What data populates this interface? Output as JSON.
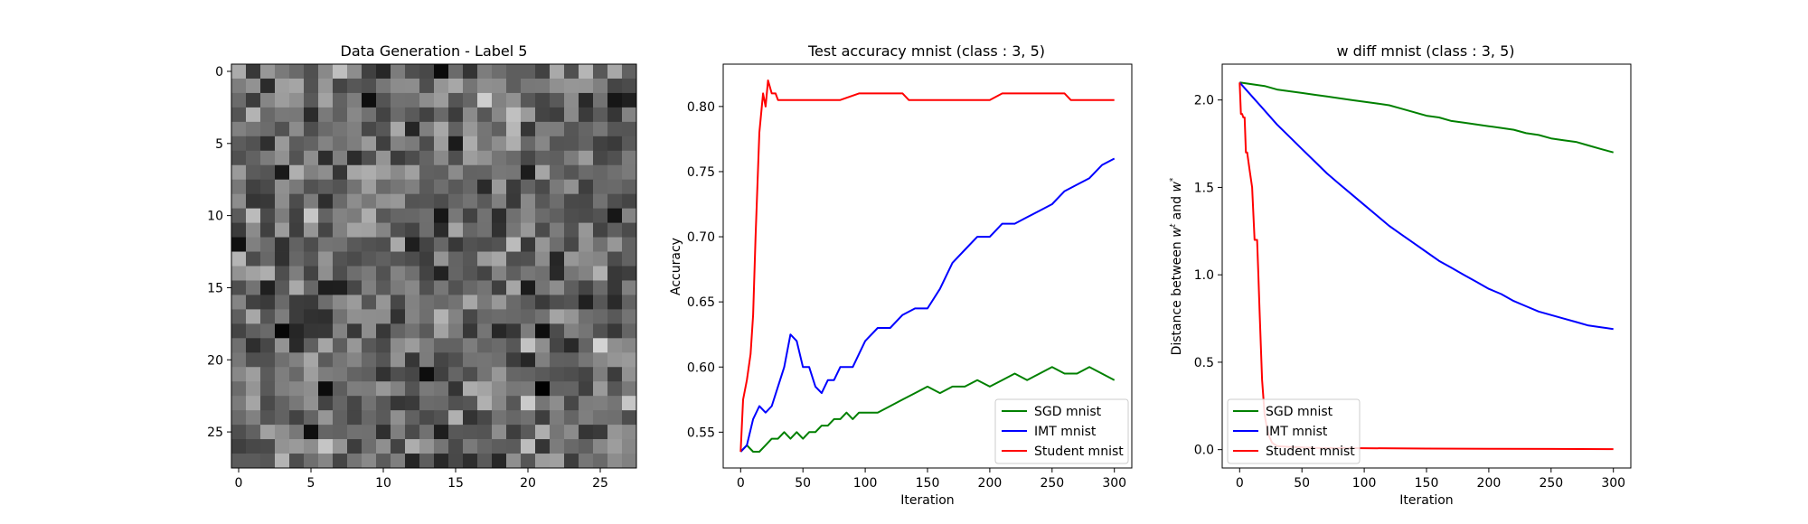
{
  "chart_data": [
    {
      "type": "heatmap",
      "title": "Data Generation - Label 5",
      "xlabel": "",
      "ylabel": "",
      "colormap": "gray",
      "grid": "28x28",
      "xticks": [
        "0",
        "5",
        "10",
        "15",
        "20",
        "25"
      ],
      "yticks": [
        "0",
        "5",
        "10",
        "15",
        "20",
        "25"
      ],
      "xlim": [
        -0.5,
        27.5
      ],
      "ylim": [
        27.5,
        -0.5
      ]
    },
    {
      "type": "line",
      "title": "Test accuracy mnist (class : 3, 5)",
      "xlabel": "Iteration",
      "ylabel": "Accuracy",
      "xlim": [
        -14,
        314
      ],
      "ylim": [
        0.5225,
        0.8325
      ],
      "xticks": [
        "0",
        "50",
        "100",
        "150",
        "200",
        "250",
        "300"
      ],
      "yticks": [
        "0.55",
        "0.60",
        "0.65",
        "0.70",
        "0.75",
        "0.80"
      ],
      "legend": "lower-right",
      "grid": false,
      "series": [
        {
          "name": "SGD mnist",
          "color": "#008000",
          "x": [
            0,
            5,
            10,
            15,
            20,
            25,
            30,
            35,
            40,
            45,
            50,
            55,
            60,
            65,
            70,
            75,
            80,
            85,
            90,
            95,
            100,
            110,
            120,
            130,
            140,
            150,
            160,
            170,
            180,
            190,
            200,
            210,
            220,
            230,
            240,
            250,
            260,
            270,
            280,
            290,
            300
          ],
          "y": [
            0.535,
            0.54,
            0.535,
            0.535,
            0.54,
            0.545,
            0.545,
            0.55,
            0.545,
            0.55,
            0.545,
            0.55,
            0.55,
            0.555,
            0.555,
            0.56,
            0.56,
            0.565,
            0.56,
            0.565,
            0.565,
            0.565,
            0.57,
            0.575,
            0.58,
            0.585,
            0.58,
            0.585,
            0.585,
            0.59,
            0.585,
            0.59,
            0.595,
            0.59,
            0.595,
            0.6,
            0.595,
            0.595,
            0.6,
            0.595,
            0.59
          ]
        },
        {
          "name": "IMT mnist",
          "color": "#0000ff",
          "x": [
            0,
            5,
            10,
            15,
            20,
            25,
            30,
            35,
            40,
            45,
            50,
            55,
            60,
            65,
            70,
            75,
            80,
            85,
            90,
            95,
            100,
            110,
            120,
            130,
            140,
            150,
            160,
            170,
            180,
            190,
            200,
            210,
            220,
            230,
            240,
            250,
            260,
            270,
            280,
            290,
            300
          ],
          "y": [
            0.535,
            0.54,
            0.56,
            0.57,
            0.565,
            0.57,
            0.585,
            0.6,
            0.625,
            0.62,
            0.6,
            0.6,
            0.585,
            0.58,
            0.59,
            0.59,
            0.6,
            0.6,
            0.6,
            0.61,
            0.62,
            0.63,
            0.63,
            0.64,
            0.645,
            0.645,
            0.66,
            0.68,
            0.69,
            0.7,
            0.7,
            0.71,
            0.71,
            0.715,
            0.72,
            0.725,
            0.735,
            0.74,
            0.745,
            0.755,
            0.76
          ]
        },
        {
          "name": "Student mnist",
          "color": "#ff0000",
          "x": [
            0,
            2,
            5,
            8,
            10,
            12,
            15,
            18,
            20,
            22,
            25,
            28,
            30,
            35,
            40,
            50,
            60,
            80,
            95,
            100,
            110,
            120,
            130,
            135,
            150,
            170,
            200,
            210,
            220,
            240,
            260,
            265,
            280,
            300
          ],
          "y": [
            0.535,
            0.575,
            0.59,
            0.61,
            0.64,
            0.7,
            0.78,
            0.81,
            0.8,
            0.82,
            0.81,
            0.81,
            0.805,
            0.805,
            0.805,
            0.805,
            0.805,
            0.805,
            0.81,
            0.81,
            0.81,
            0.81,
            0.81,
            0.805,
            0.805,
            0.805,
            0.805,
            0.81,
            0.81,
            0.81,
            0.81,
            0.805,
            0.805,
            0.805
          ]
        }
      ]
    },
    {
      "type": "line",
      "title": "w diff mnist (class : 3, 5)",
      "xlabel": "Iteration",
      "ylabel": "Distance between w^t and w^*",
      "ylabel_parts": {
        "pre": "Distance between ",
        "w": "w",
        "t": "t",
        "and": " and ",
        "star": "*"
      },
      "xlim": [
        -14,
        314
      ],
      "ylim": [
        -0.105,
        2.205
      ],
      "xticks": [
        "0",
        "50",
        "100",
        "150",
        "200",
        "250",
        "300"
      ],
      "yticks": [
        "0.0",
        "0.5",
        "1.0",
        "1.5",
        "2.0"
      ],
      "legend": "lower-left",
      "grid": false,
      "series": [
        {
          "name": "SGD mnist",
          "color": "#008000",
          "x": [
            0,
            10,
            20,
            30,
            40,
            50,
            60,
            70,
            80,
            90,
            100,
            110,
            120,
            130,
            140,
            150,
            160,
            170,
            180,
            190,
            200,
            210,
            220,
            230,
            240,
            250,
            260,
            270,
            280,
            290,
            300
          ],
          "y": [
            2.1,
            2.09,
            2.08,
            2.06,
            2.05,
            2.04,
            2.03,
            2.02,
            2.01,
            2.0,
            1.99,
            1.98,
            1.97,
            1.95,
            1.93,
            1.91,
            1.9,
            1.88,
            1.87,
            1.86,
            1.85,
            1.84,
            1.83,
            1.81,
            1.8,
            1.78,
            1.77,
            1.76,
            1.74,
            1.72,
            1.7
          ]
        },
        {
          "name": "IMT mnist",
          "color": "#0000ff",
          "x": [
            0,
            10,
            20,
            30,
            40,
            50,
            60,
            70,
            80,
            90,
            100,
            110,
            120,
            130,
            140,
            150,
            160,
            170,
            180,
            190,
            200,
            210,
            220,
            230,
            240,
            250,
            260,
            270,
            280,
            290,
            300
          ],
          "y": [
            2.1,
            2.02,
            1.94,
            1.86,
            1.79,
            1.72,
            1.65,
            1.58,
            1.52,
            1.46,
            1.4,
            1.34,
            1.28,
            1.23,
            1.18,
            1.13,
            1.08,
            1.04,
            1.0,
            0.96,
            0.92,
            0.89,
            0.85,
            0.82,
            0.79,
            0.77,
            0.75,
            0.73,
            0.71,
            0.7,
            0.69
          ]
        },
        {
          "name": "Student mnist",
          "color": "#ff0000",
          "x": [
            0,
            1,
            2,
            3,
            4,
            5,
            6,
            8,
            10,
            12,
            14,
            15,
            16,
            17,
            18,
            19,
            20,
            22,
            24,
            26,
            30,
            40,
            60,
            100,
            150,
            200,
            250,
            300
          ],
          "y": [
            2.1,
            1.92,
            1.92,
            1.9,
            1.9,
            1.7,
            1.7,
            1.6,
            1.5,
            1.2,
            1.2,
            1.0,
            0.8,
            0.6,
            0.4,
            0.3,
            0.2,
            0.12,
            0.07,
            0.04,
            0.02,
            0.015,
            0.01,
            0.008,
            0.006,
            0.005,
            0.004,
            0.003
          ]
        }
      ]
    }
  ]
}
